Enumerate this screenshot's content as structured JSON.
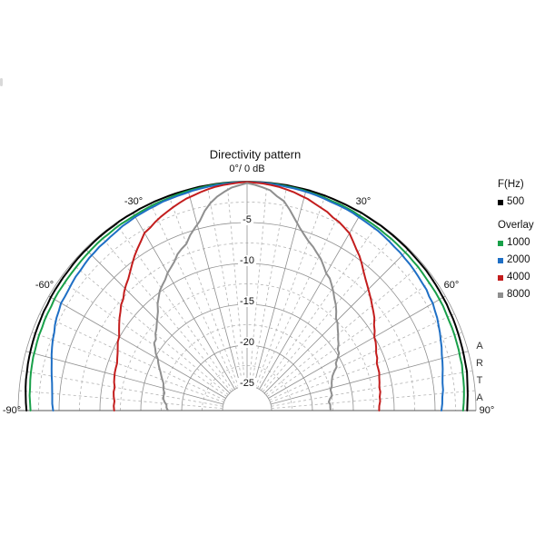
{
  "watermark": "ARTA",
  "legend": {
    "freq_heading": "F(Hz)",
    "primary": {
      "label": "500",
      "color": "#000000"
    },
    "overlay_heading": "Overlay",
    "overlay_items": [
      {
        "label": "1000",
        "color": "#18a049"
      },
      {
        "label": "2000",
        "color": "#1e6fc5"
      },
      {
        "label": "4000",
        "color": "#c31d1d"
      },
      {
        "label": "8000",
        "color": "#8f8f8f"
      }
    ]
  },
  "chart_data": {
    "type": "polar-directivity",
    "title": "Directivity pattern",
    "apex_label": "0°/ 0 dB",
    "angle_unit": "deg",
    "angle_range": [
      -90,
      90
    ],
    "db_range": [
      0,
      -28
    ],
    "legend_position": "right",
    "grid": {
      "circle_major_db": 5,
      "circle_minor_db": 2.5,
      "radial_major_deg": 15,
      "radial_minor_deg": 5
    },
    "angle_labels": [
      {
        "angle": -90,
        "text": "-90°"
      },
      {
        "angle": -60,
        "text": "-60°"
      },
      {
        "angle": -30,
        "text": "-30°"
      },
      {
        "angle": 30,
        "text": "30°"
      },
      {
        "angle": 60,
        "text": "60°"
      },
      {
        "angle": 90,
        "text": "90°"
      }
    ],
    "radial_ticks": [
      {
        "db": -5,
        "text": "-5"
      },
      {
        "db": -10,
        "text": "-10"
      },
      {
        "db": -15,
        "text": "-15"
      },
      {
        "db": -20,
        "text": "-20"
      },
      {
        "db": -25,
        "text": "-25"
      }
    ],
    "series": [
      {
        "name": "500",
        "freq_hz": 500,
        "color": "#000000",
        "noise_db": 0.06,
        "points": [
          [
            -90,
            -1.0
          ],
          [
            -80,
            -0.65
          ],
          [
            -70,
            -0.45
          ],
          [
            -60,
            -0.3
          ],
          [
            -50,
            -0.2
          ],
          [
            -40,
            -0.12
          ],
          [
            -30,
            -0.07
          ],
          [
            -20,
            -0.04
          ],
          [
            -10,
            -0.02
          ],
          [
            0,
            0
          ],
          [
            10,
            -0.02
          ],
          [
            20,
            -0.05
          ],
          [
            30,
            -0.08
          ],
          [
            40,
            -0.12
          ],
          [
            50,
            -0.18
          ],
          [
            60,
            -0.3
          ],
          [
            70,
            -0.5
          ],
          [
            80,
            -0.7
          ],
          [
            90,
            -1.1
          ]
        ]
      },
      {
        "name": "1000",
        "freq_hz": 1000,
        "color": "#18a049",
        "noise_db": 0.07,
        "points": [
          [
            -90,
            -1.5
          ],
          [
            -80,
            -1.15
          ],
          [
            -70,
            -0.95
          ],
          [
            -60,
            -0.8
          ],
          [
            -50,
            -0.68
          ],
          [
            -40,
            -0.55
          ],
          [
            -30,
            -0.42
          ],
          [
            -20,
            -0.28
          ],
          [
            -10,
            -0.12
          ],
          [
            0,
            -0.02
          ],
          [
            10,
            -0.12
          ],
          [
            20,
            -0.3
          ],
          [
            30,
            -0.45
          ],
          [
            40,
            -0.58
          ],
          [
            50,
            -0.7
          ],
          [
            60,
            -0.82
          ],
          [
            70,
            -1.0
          ],
          [
            80,
            -1.2
          ],
          [
            90,
            -1.55
          ]
        ]
      },
      {
        "name": "2000",
        "freq_hz": 2000,
        "color": "#1e6fc5",
        "noise_db": 0.1,
        "points": [
          [
            -90,
            -4.3
          ],
          [
            -85,
            -4.05
          ],
          [
            -80,
            -3.75
          ],
          [
            -75,
            -3.25
          ],
          [
            -70,
            -2.75
          ],
          [
            -65,
            -2.2
          ],
          [
            -60,
            -1.75
          ],
          [
            -55,
            -1.55
          ],
          [
            -50,
            -1.35
          ],
          [
            -45,
            -1.15
          ],
          [
            -40,
            -1.0
          ],
          [
            -35,
            -0.85
          ],
          [
            -30,
            -0.68
          ],
          [
            -25,
            -0.55
          ],
          [
            -20,
            -0.45
          ],
          [
            -15,
            -0.32
          ],
          [
            -10,
            -0.2
          ],
          [
            -5,
            -0.1
          ],
          [
            0,
            -0.02
          ],
          [
            5,
            -0.1
          ],
          [
            10,
            -0.2
          ],
          [
            15,
            -0.3
          ],
          [
            20,
            -0.42
          ],
          [
            25,
            -0.52
          ],
          [
            30,
            -0.62
          ],
          [
            35,
            -0.78
          ],
          [
            40,
            -0.95
          ],
          [
            45,
            -1.12
          ],
          [
            50,
            -1.32
          ],
          [
            55,
            -1.52
          ],
          [
            60,
            -1.8
          ],
          [
            65,
            -2.25
          ],
          [
            70,
            -2.8
          ],
          [
            75,
            -3.3
          ],
          [
            80,
            -3.7
          ],
          [
            85,
            -4.0
          ],
          [
            90,
            -4.25
          ]
        ]
      },
      {
        "name": "4000",
        "freq_hz": 4000,
        "color": "#c31d1d",
        "noise_db": 0.15,
        "points": [
          [
            -90,
            -11.8
          ],
          [
            -85,
            -11.65
          ],
          [
            -80,
            -11.5
          ],
          [
            -75,
            -11.25
          ],
          [
            -70,
            -11.0
          ],
          [
            -65,
            -10.55
          ],
          [
            -60,
            -9.9
          ],
          [
            -55,
            -8.95
          ],
          [
            -50,
            -7.95
          ],
          [
            -45,
            -6.95
          ],
          [
            -40,
            -5.75
          ],
          [
            -35,
            -4.35
          ],
          [
            -30,
            -2.95
          ],
          [
            -25,
            -2.2
          ],
          [
            -20,
            -1.55
          ],
          [
            -15,
            -0.95
          ],
          [
            -10,
            -0.5
          ],
          [
            -5,
            -0.2
          ],
          [
            0,
            -0.02
          ],
          [
            5,
            -0.2
          ],
          [
            10,
            -0.5
          ],
          [
            15,
            -0.95
          ],
          [
            20,
            -1.55
          ],
          [
            25,
            -2.25
          ],
          [
            30,
            -3.0
          ],
          [
            35,
            -4.4
          ],
          [
            40,
            -5.8
          ],
          [
            45,
            -7.0
          ],
          [
            50,
            -8.0
          ],
          [
            55,
            -9.0
          ],
          [
            60,
            -10.0
          ],
          [
            65,
            -10.6
          ],
          [
            70,
            -11.05
          ],
          [
            75,
            -11.3
          ],
          [
            80,
            -11.5
          ],
          [
            85,
            -11.7
          ],
          [
            90,
            -11.9
          ]
        ]
      },
      {
        "name": "8000",
        "freq_hz": 8000,
        "color": "#8f8f8f",
        "noise_db": 0.3,
        "points": [
          [
            -90,
            -18.4
          ],
          [
            -85,
            -18.0
          ],
          [
            -80,
            -17.6
          ],
          [
            -75,
            -17.45
          ],
          [
            -70,
            -17.1
          ],
          [
            -65,
            -16.2
          ],
          [
            -60,
            -15.3
          ],
          [
            -55,
            -14.25
          ],
          [
            -50,
            -13.4
          ],
          [
            -45,
            -12.45
          ],
          [
            -40,
            -11.05
          ],
          [
            -35,
            -9.6
          ],
          [
            -30,
            -8.65
          ],
          [
            -25,
            -7.4
          ],
          [
            -20,
            -6.2
          ],
          [
            -15,
            -4.5
          ],
          [
            -10,
            -2.2
          ],
          [
            -5,
            -0.8
          ],
          [
            0,
            -0.15
          ],
          [
            5,
            -0.7
          ],
          [
            10,
            -2.0
          ],
          [
            15,
            -4.3
          ],
          [
            20,
            -6.05
          ],
          [
            25,
            -7.25
          ],
          [
            30,
            -8.55
          ],
          [
            35,
            -9.85
          ],
          [
            40,
            -11.2
          ],
          [
            45,
            -12.5
          ],
          [
            50,
            -13.35
          ],
          [
            55,
            -14.3
          ],
          [
            60,
            -15.2
          ],
          [
            65,
            -16.1
          ],
          [
            70,
            -17.0
          ],
          [
            75,
            -17.35
          ],
          [
            80,
            -17.55
          ],
          [
            85,
            -17.9
          ],
          [
            90,
            -17.9
          ]
        ]
      }
    ]
  }
}
